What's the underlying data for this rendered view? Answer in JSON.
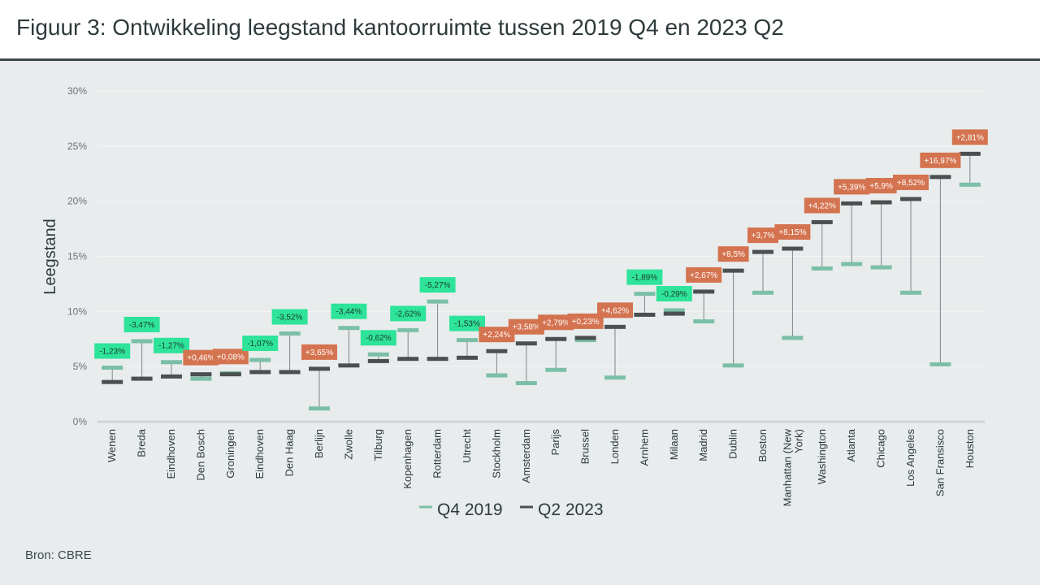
{
  "title": "Figuur 3: Ontwikkeling leegstand kantoorruimte tussen 2019 Q4 en 2023 Q2",
  "source": "Bron: CBRE",
  "colors": {
    "q4_2019": "#7bbfa8",
    "q2_2023": "#4a4f50",
    "decrease": "#2ee39a",
    "increase": "#d4734f",
    "axis": "#cfd5d5"
  },
  "chart_data": {
    "type": "range-dot",
    "title": "Figuur 3: Ontwikkeling leegstand kantoorruimte tussen 2019 Q4 en 2023 Q2",
    "ylabel": "Leegstand",
    "xlabel": "",
    "ylim": [
      0,
      30
    ],
    "yticks": [
      "0%",
      "5%",
      "10%",
      "15%",
      "20%",
      "25%",
      "30%"
    ],
    "grid": true,
    "legend_position": "bottom",
    "categories": [
      "Wenen",
      "Breda",
      "Eindhoven",
      "Den Bosch",
      "Groningen",
      "Eindhoven",
      "Den Haag",
      "Berlijn",
      "Zwolle",
      "Tilburg",
      "Kopenhagen",
      "Rotterdam",
      "Utrecht",
      "Stockholm",
      "Amsterdam",
      "Parijs",
      "Brussel",
      "Londen",
      "Arnhem",
      "Milaan",
      "Madrid",
      "Dublin",
      "Boston",
      "Manhattan (New York)",
      "Washington",
      "Atlanta",
      "Chicago",
      "Los Angeles",
      "San Fransisco",
      "Houston"
    ],
    "series": [
      {
        "name": "Q4 2019",
        "values": [
          4.9,
          7.3,
          5.4,
          3.9,
          4.4,
          5.6,
          8.0,
          1.2,
          8.5,
          6.1,
          8.3,
          10.9,
          7.4,
          4.2,
          3.5,
          4.7,
          7.4,
          4.0,
          11.6,
          10.1,
          9.1,
          5.1,
          11.7,
          7.6,
          13.9,
          14.3,
          14.0,
          11.7,
          5.2,
          21.5
        ]
      },
      {
        "name": "Q2 2023",
        "values": [
          3.6,
          3.9,
          4.1,
          4.3,
          4.3,
          4.5,
          4.5,
          4.8,
          5.1,
          5.5,
          5.7,
          5.7,
          5.8,
          6.4,
          7.1,
          7.5,
          7.6,
          8.6,
          9.7,
          9.8,
          11.8,
          13.7,
          15.4,
          15.7,
          18.1,
          19.8,
          19.9,
          20.2,
          22.2,
          24.3
        ]
      }
    ],
    "change_labels": [
      "-1,23%",
      "-3,47%",
      "-1,27%",
      "+0,46%",
      "+0,08%",
      "-1,07%",
      "-3,52%",
      "+3,65%",
      "-3,44%",
      "-0,62%",
      "-2,62%",
      "-5,27%",
      "-1,53%",
      "+2,24%",
      "+3,58%",
      "+2,79%",
      "+0,23%",
      "+4,62%",
      "-1,89%",
      "-0,29%",
      "+2,67%",
      "+8,5%",
      "+3,7%",
      "+8,15%",
      "+4,22%",
      "+5,39%",
      "+5,9%",
      "+8,52%",
      "+16,97%",
      "+2,81%"
    ]
  }
}
